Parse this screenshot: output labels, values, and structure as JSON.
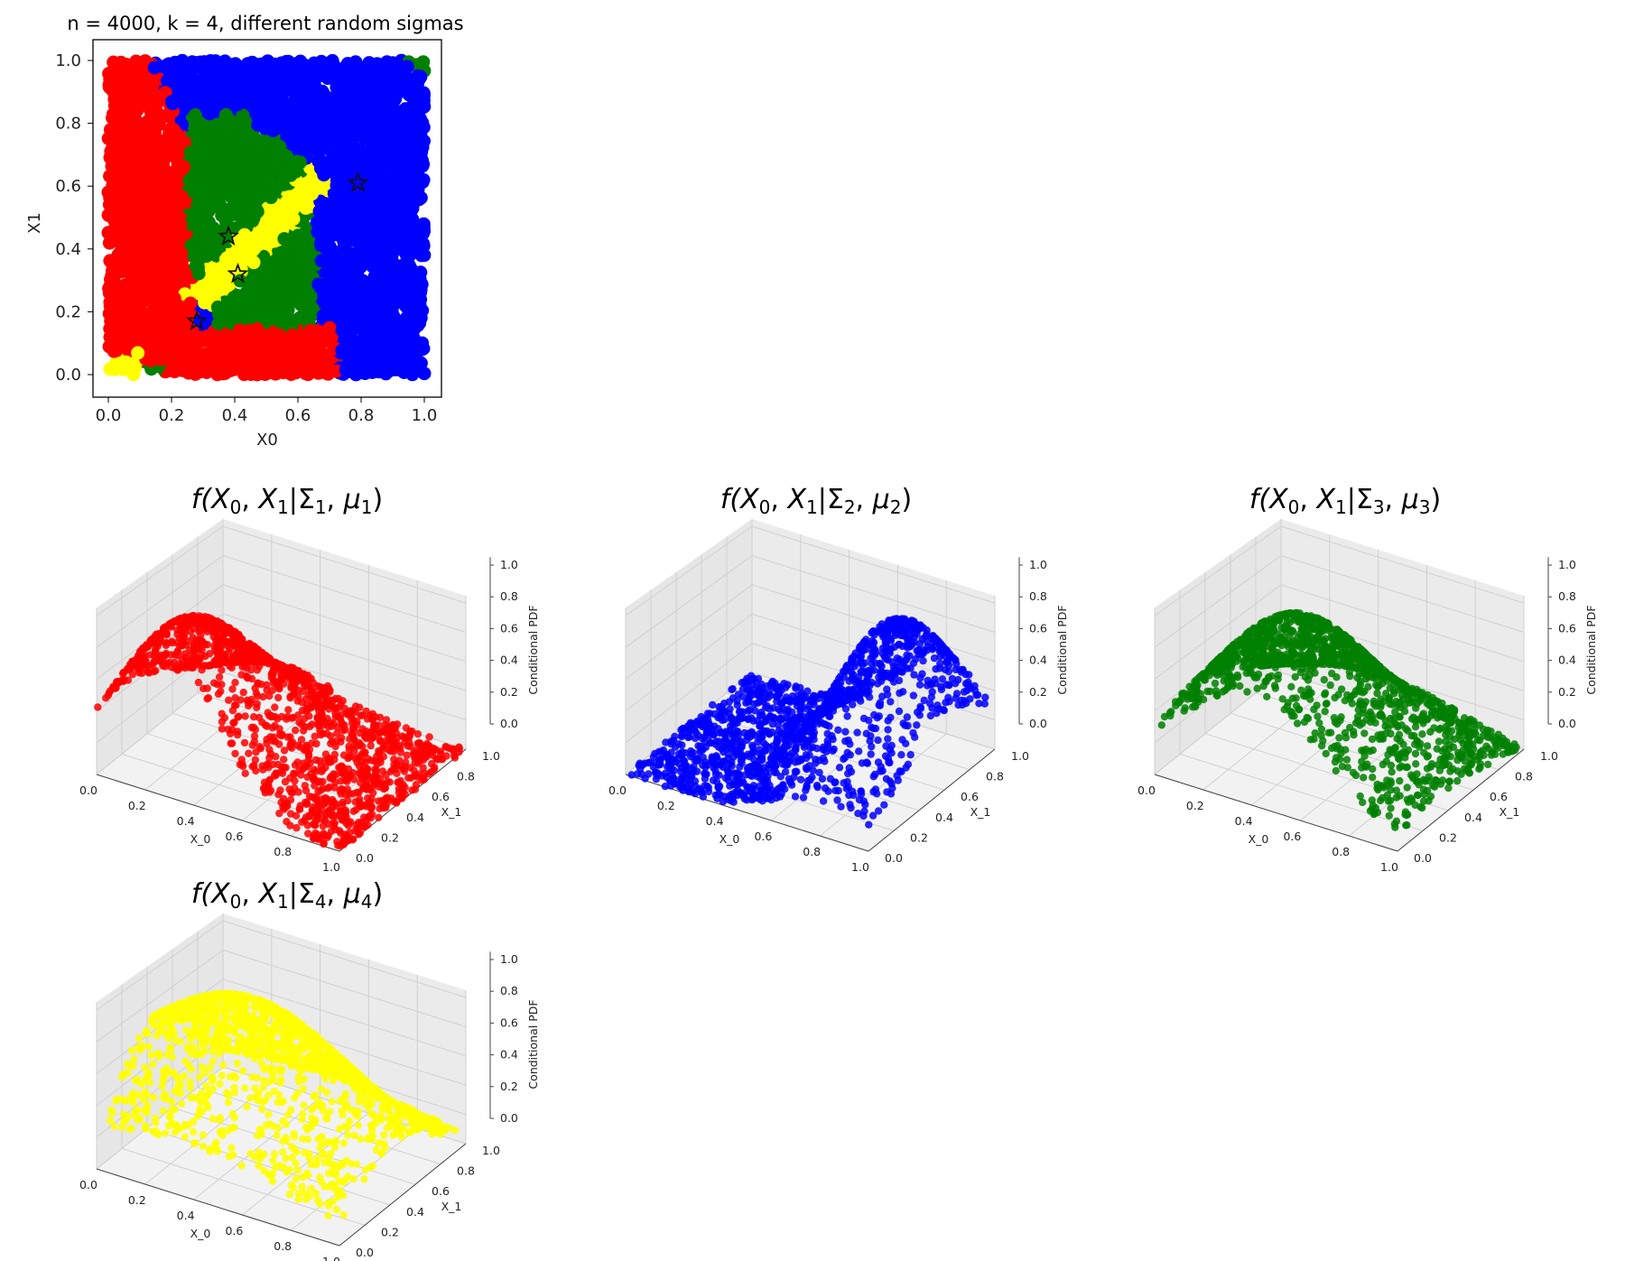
{
  "chart_data": [
    {
      "type": "scatter",
      "title": "n = 4000, k = 4, different random sigmas",
      "xlabel": "X0",
      "ylabel": "X1",
      "xlim": [
        0,
        1
      ],
      "ylim": [
        0,
        1
      ],
      "xticks": [
        "0.0",
        "0.2",
        "0.4",
        "0.6",
        "0.8",
        "1.0"
      ],
      "yticks": [
        "0.0",
        "0.2",
        "0.4",
        "0.6",
        "0.8",
        "1.0"
      ],
      "grid": false,
      "colors": [
        "#ff0000",
        "#0000ff",
        "#008000",
        "#ffff00"
      ],
      "centers": [
        {
          "x": 0.28,
          "y": 0.17
        },
        {
          "x": 0.79,
          "y": 0.61
        },
        {
          "x": 0.41,
          "y": 0.32
        },
        {
          "x": 0.38,
          "y": 0.44
        }
      ],
      "point_marker": "circle",
      "center_marker": "star"
    },
    {
      "type": "scatter",
      "subtype": "3d",
      "title_parts": [
        "f(",
        "X",
        "0",
        ", ",
        "X",
        "1",
        "|Σ",
        "1",
        ", ",
        "μ",
        "1",
        ")"
      ],
      "xlabel": "X_0",
      "ylabel": "X_1",
      "zlabel": "Conditional PDF",
      "color": "#ff0000",
      "mu": [
        0.28,
        0.17
      ],
      "sigma": [
        0.22,
        0.45
      ],
      "xticks": [
        "0.0",
        "0.2",
        "0.4",
        "0.6",
        "0.8",
        "1.0"
      ],
      "yticks": [
        "0.0",
        "0.2",
        "0.4",
        "0.6",
        "0.8",
        "1.0"
      ],
      "zticks": [
        "0.0",
        "0.2",
        "0.4",
        "0.6",
        "0.8",
        "1.0"
      ]
    },
    {
      "type": "scatter",
      "subtype": "3d",
      "title_parts": [
        "f(",
        "X",
        "0",
        ", ",
        "X",
        "1",
        "|Σ",
        "2",
        ", ",
        "μ",
        "2",
        ")"
      ],
      "xlabel": "X_0",
      "ylabel": "X_1",
      "zlabel": "Conditional PDF",
      "color": "#0000ff",
      "mu": [
        0.79,
        0.61
      ],
      "sigma": [
        0.18,
        0.35
      ],
      "xticks": [
        "0.0",
        "0.2",
        "0.4",
        "0.6",
        "0.8",
        "1.0"
      ],
      "yticks": [
        "0.0",
        "0.2",
        "0.4",
        "0.6",
        "0.8",
        "1.0"
      ],
      "zticks": [
        "0.0",
        "0.2",
        "0.4",
        "0.6",
        "0.8",
        "1.0"
      ]
    },
    {
      "type": "scatter",
      "subtype": "3d",
      "title_parts": [
        "f(",
        "X",
        "0",
        ", ",
        "X",
        "1",
        "|Σ",
        "3",
        ", ",
        "μ",
        "3",
        ")"
      ],
      "xlabel": "X_0",
      "ylabel": "X_1",
      "zlabel": "Conditional PDF",
      "color": "#008000",
      "mu": [
        0.41,
        0.32
      ],
      "sigma": [
        0.3,
        0.38
      ],
      "xticks": [
        "0.0",
        "0.2",
        "0.4",
        "0.6",
        "0.8",
        "1.0"
      ],
      "yticks": [
        "0.0",
        "0.2",
        "0.4",
        "0.6",
        "0.8",
        "1.0"
      ],
      "zticks": [
        "0.0",
        "0.2",
        "0.4",
        "0.6",
        "0.8",
        "1.0"
      ]
    },
    {
      "type": "scatter",
      "subtype": "3d",
      "title_parts": [
        "f(",
        "X",
        "0",
        ", ",
        "X",
        "1",
        "|Σ",
        "4",
        ", ",
        "μ",
        "4",
        ")"
      ],
      "xlabel": "X_0",
      "ylabel": "X_1",
      "zlabel": "Conditional PDF",
      "color": "#ffff00",
      "mu": [
        0.38,
        0.44
      ],
      "sigma": [
        0.45,
        0.3
      ],
      "xticks": [
        "0.0",
        "0.2",
        "0.4",
        "0.6",
        "0.8",
        "1.0"
      ],
      "yticks": [
        "0.0",
        "0.2",
        "0.4",
        "0.6",
        "0.8",
        "1.0"
      ],
      "zticks": [
        "0.0",
        "0.2",
        "0.4",
        "0.6",
        "0.8",
        "1.0"
      ]
    }
  ]
}
